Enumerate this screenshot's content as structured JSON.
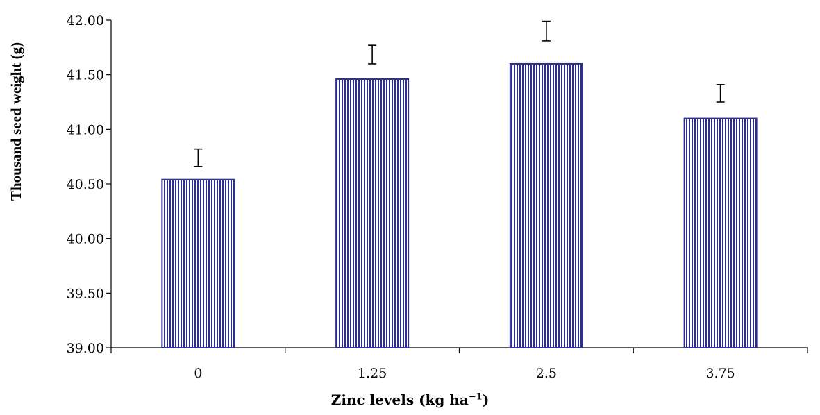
{
  "chart_data": {
    "type": "bar",
    "categories": [
      "0",
      "1.25",
      "2.5",
      "3.75"
    ],
    "values": [
      40.54,
      41.46,
      41.6,
      41.1
    ],
    "error_bars": [
      {
        "low": 40.66,
        "high": 40.82
      },
      {
        "low": 41.6,
        "high": 41.77
      },
      {
        "low": 41.81,
        "high": 41.99
      },
      {
        "low": 41.25,
        "high": 41.41
      }
    ],
    "ylim": [
      39.0,
      42.0
    ],
    "yticks": [
      "39.00",
      "39.50",
      "40.00",
      "40.50",
      "41.00",
      "41.50",
      "42.00"
    ],
    "ytick_values": [
      39.0,
      39.5,
      40.0,
      40.5,
      41.0,
      41.5,
      42.0
    ],
    "ylabel": "Thousand seed weight (g)",
    "xlabel_main": "Zinc levels (kg ha",
    "xlabel_sup": "−1",
    "xlabel_end": ")",
    "grid": false,
    "legend": "none",
    "bar_fill": "#2d2f8f",
    "bar_stripe": "#ffffff"
  }
}
